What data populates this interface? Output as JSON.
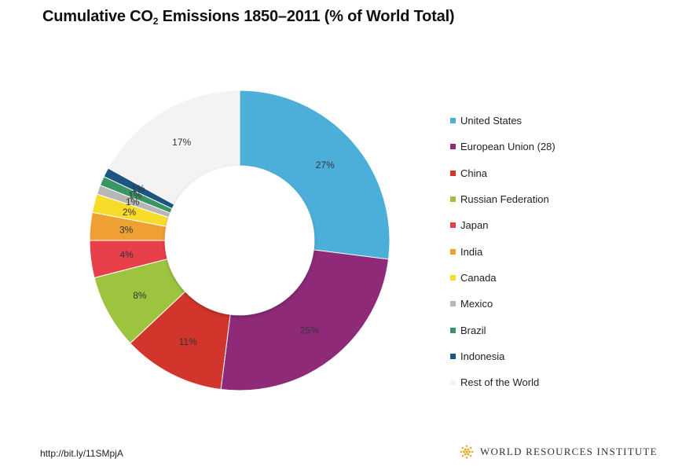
{
  "chart_data": {
    "type": "pie",
    "title_main": "Cumulative CO",
    "title_sub": "2",
    "title_rest": " Emissions 1850–2011 (% of World Total)",
    "slices": [
      {
        "name": "United States",
        "value": 27,
        "label": "27%",
        "color": "#4bafd9"
      },
      {
        "name": "European Union (28)",
        "value": 25,
        "label": "25%",
        "color": "#8e2a78"
      },
      {
        "name": "China",
        "value": 11,
        "label": "11%",
        "color": "#d1352b"
      },
      {
        "name": "Russian Federation",
        "value": 8,
        "label": "8%",
        "color": "#9dc43f"
      },
      {
        "name": "Japan",
        "value": 4,
        "label": "4%",
        "color": "#e8404a"
      },
      {
        "name": "India",
        "value": 3,
        "label": "3%",
        "color": "#eea032"
      },
      {
        "name": "Canada",
        "value": 2,
        "label": "2%",
        "color": "#f8dc2a"
      },
      {
        "name": "Mexico",
        "value": 1,
        "label": "1%",
        "color": "#b7b7b7"
      },
      {
        "name": "Brazil",
        "value": 1,
        "label": "1%",
        "color": "#3a9564"
      },
      {
        "name": "Indonesia",
        "value": 1,
        "label": "1%",
        "color": "#1b5680"
      },
      {
        "name": "Rest of the World",
        "value": 17,
        "label": "17%",
        "color": "#f3f3f4"
      }
    ],
    "legend_position": "right"
  },
  "footer": {
    "source_link": "http://bit.ly/11SMpjA",
    "organization": "WORLD RESOURCES INSTITUTE",
    "logo_color": "#e0a92a"
  }
}
